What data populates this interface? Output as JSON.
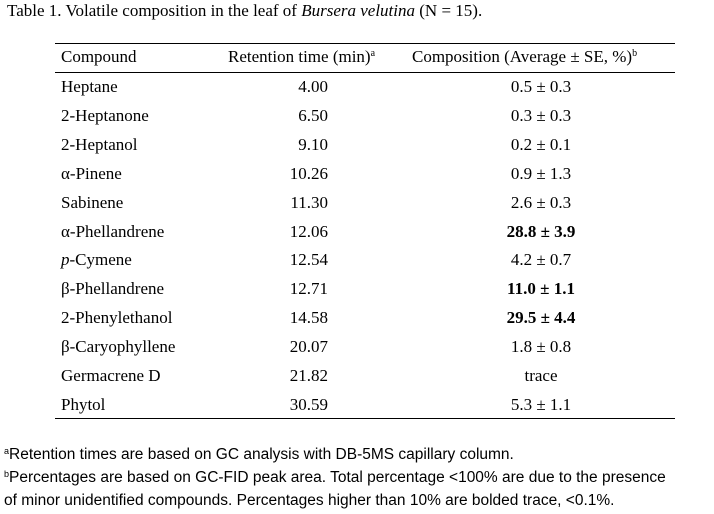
{
  "caption": {
    "prefix": "Table 1. Volatile composition in the leaf of ",
    "species": "Bursera velutina",
    "suffix": " (N = 15)."
  },
  "headers": {
    "compound": "Compound",
    "retention": "Retention time (min)",
    "retention_mark": "a",
    "composition": "Composition (Average ± SE, %)",
    "composition_mark": "b"
  },
  "rows": [
    {
      "compound": "Heptane",
      "rt": "4.00",
      "comp_main": "0.5",
      "comp_rest": " ± 0.3"
    },
    {
      "compound": "2-Heptanone",
      "rt": "6.50",
      "comp_main": "0.3",
      "comp_rest": " ± 0.3"
    },
    {
      "compound": "2-Heptanol",
      "rt": "9.10",
      "comp_main": "0.2",
      "comp_rest": " ± 0.1"
    },
    {
      "compound": "α-Pinene",
      "rt": "10.26",
      "comp_main": "0.9",
      "comp_rest": " ± 1.3"
    },
    {
      "compound": "Sabinene",
      "rt": "11.30",
      "comp_main": "2.6",
      "comp_rest": " ± 0.3"
    },
    {
      "compound": "α-Phellandrene",
      "rt": "12.06",
      "comp_main": "28.8",
      "comp_rest": " ± 3.9"
    },
    {
      "compound_italic": "p",
      "compound": "-Cymene",
      "rt": "12.54",
      "comp_main": "4.2",
      "comp_rest": " ± 0.7"
    },
    {
      "compound": "β-Phellandrene",
      "rt": "12.71",
      "comp_main": "11.0",
      "comp_rest": " ± 1.1"
    },
    {
      "compound": "2-Phenylethanol",
      "rt": "14.58",
      "comp_main": "29.5",
      "comp_rest": " ± 4.4"
    },
    {
      "compound": "β-Caryophyllene",
      "rt": "20.07",
      "comp_main": "1.8",
      "comp_rest": " ± 0.8"
    },
    {
      "compound": "Germacrene D",
      "rt": "21.82",
      "comp_main": "trace",
      "comp_rest": ""
    },
    {
      "compound": "Phytol",
      "rt": "30.59",
      "comp_main": "5.3",
      "comp_rest": " ± 1.1"
    }
  ],
  "footnotes": {
    "a_mark": "a",
    "a_text": "Retention times are based on GC analysis with DB-5MS capillary column.",
    "b_mark": "b",
    "b_line1": "Percentages are based on GC-FID peak area. Total percentage <100% are due to the presence",
    "b_line2": "of minor unidentified compounds. Percentages higher than 10% are bolded trace, <0.1%."
  }
}
